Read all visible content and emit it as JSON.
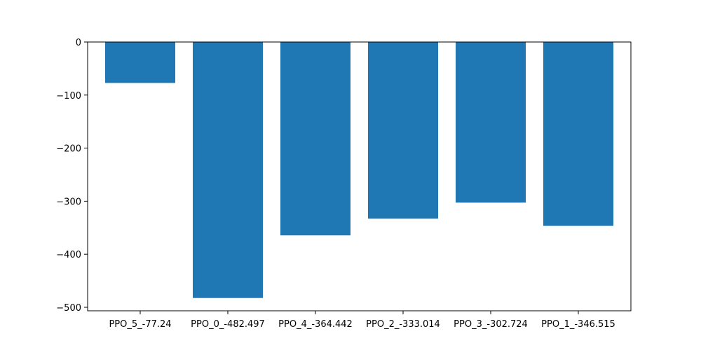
{
  "chart_data": {
    "type": "bar",
    "title": "",
    "xlabel": "",
    "ylabel": "",
    "categories": [
      "PPO_5_-77.24",
      "PPO_0_-482.497",
      "PPO_4_-364.442",
      "PPO_2_-333.014",
      "PPO_3_-302.724",
      "PPO_1_-346.515"
    ],
    "values": [
      -77.24,
      -482.497,
      -364.442,
      -333.014,
      -302.724,
      -346.515
    ],
    "ylim": [
      -506.6,
      0
    ],
    "yticks": [
      0,
      -100,
      -200,
      -300,
      -400,
      -500
    ],
    "ytick_labels": [
      "0",
      "−100",
      "−200",
      "−300",
      "−400",
      "−500"
    ],
    "bar_color": "#1f77b4",
    "grid": false,
    "legend": "none"
  }
}
